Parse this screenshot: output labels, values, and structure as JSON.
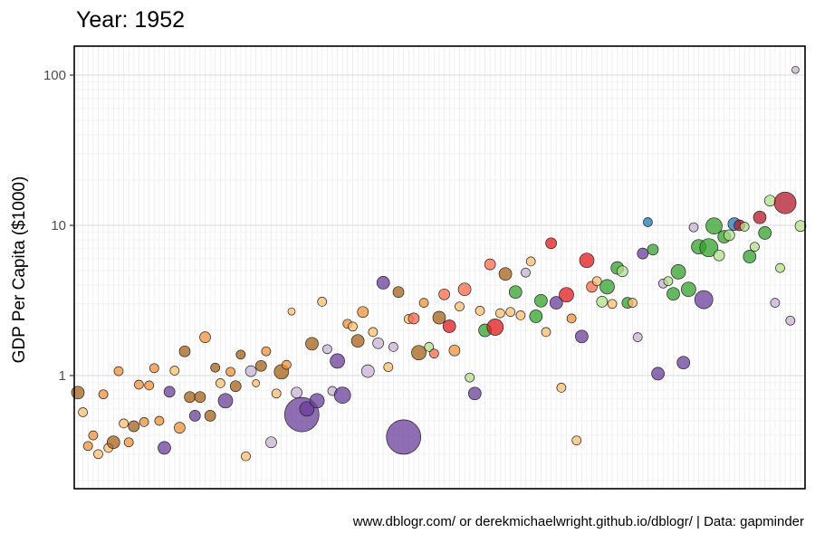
{
  "chart_data": {
    "type": "scatter",
    "title": "Year: 1952",
    "xlabel": "",
    "ylabel": "GDP Per Capita ($1000)",
    "caption": "www.dblogr.com/ or derekmichaelwright.github.io/dblogr/ | Data: gapminder",
    "y_scale": "log10",
    "ylim": [
      0.2,
      135
    ],
    "y_ticks": [
      {
        "value": 1,
        "label": "1"
      },
      {
        "value": 10,
        "label": "10"
      },
      {
        "value": 100,
        "label": "100"
      }
    ],
    "x_axis": "categorical (countries in order), no tick labels",
    "grid": true,
    "legend": "none",
    "colors": {
      "orange_light": "#fdbf6f",
      "orange": "#f0913a",
      "brown": "#a6611a",
      "purple_light": "#cab2d6",
      "purple": "#6a3d9a",
      "green_light": "#b2df8a",
      "green": "#33a02c",
      "red": "#e31a1c",
      "red_dark": "#b2182b",
      "salmon": "#fb6a4a",
      "blue": "#1f78b4"
    },
    "points": [
      {
        "i": 0,
        "y": 0.77,
        "s": 7,
        "c": "brown"
      },
      {
        "i": 1,
        "y": 0.57,
        "s": 5,
        "c": "orange_light"
      },
      {
        "i": 2,
        "y": 0.34,
        "s": 5,
        "c": "orange"
      },
      {
        "i": 3,
        "y": 0.4,
        "s": 5,
        "c": "orange"
      },
      {
        "i": 4,
        "y": 0.3,
        "s": 5,
        "c": "orange_light"
      },
      {
        "i": 5,
        "y": 0.75,
        "s": 5,
        "c": "orange"
      },
      {
        "i": 6,
        "y": 0.33,
        "s": 5,
        "c": "orange_light"
      },
      {
        "i": 7,
        "y": 0.36,
        "s": 7,
        "c": "brown"
      },
      {
        "i": 8,
        "y": 1.07,
        "s": 5,
        "c": "orange"
      },
      {
        "i": 9,
        "y": 0.48,
        "s": 5,
        "c": "orange_light"
      },
      {
        "i": 10,
        "y": 0.36,
        "s": 5,
        "c": "orange"
      },
      {
        "i": 11,
        "y": 0.46,
        "s": 6,
        "c": "brown"
      },
      {
        "i": 12,
        "y": 0.87,
        "s": 5,
        "c": "orange"
      },
      {
        "i": 13,
        "y": 0.49,
        "s": 5,
        "c": "orange"
      },
      {
        "i": 14,
        "y": 0.86,
        "s": 5,
        "c": "orange"
      },
      {
        "i": 15,
        "y": 1.12,
        "s": 5,
        "c": "orange"
      },
      {
        "i": 16,
        "y": 0.5,
        "s": 5,
        "c": "orange"
      },
      {
        "i": 17,
        "y": 0.33,
        "s": 7,
        "c": "purple"
      },
      {
        "i": 18,
        "y": 0.78,
        "s": 6,
        "c": "purple"
      },
      {
        "i": 19,
        "y": 1.08,
        "s": 5,
        "c": "orange_light"
      },
      {
        "i": 20,
        "y": 0.45,
        "s": 6,
        "c": "orange"
      },
      {
        "i": 21,
        "y": 1.45,
        "s": 6,
        "c": "brown"
      },
      {
        "i": 22,
        "y": 0.72,
        "s": 6,
        "c": "brown"
      },
      {
        "i": 23,
        "y": 0.54,
        "s": 6,
        "c": "purple"
      },
      {
        "i": 24,
        "y": 0.72,
        "s": 6,
        "c": "brown"
      },
      {
        "i": 25,
        "y": 1.8,
        "s": 6,
        "c": "orange"
      },
      {
        "i": 26,
        "y": 0.54,
        "s": 6,
        "c": "brown"
      },
      {
        "i": 27,
        "y": 1.13,
        "s": 5,
        "c": "brown"
      },
      {
        "i": 28,
        "y": 0.89,
        "s": 5,
        "c": "orange_light"
      },
      {
        "i": 29,
        "y": 0.68,
        "s": 8,
        "c": "purple"
      },
      {
        "i": 30,
        "y": 1.06,
        "s": 5,
        "c": "orange"
      },
      {
        "i": 31,
        "y": 0.85,
        "s": 6,
        "c": "brown"
      },
      {
        "i": 32,
        "y": 1.38,
        "s": 5,
        "c": "brown"
      },
      {
        "i": 33,
        "y": 0.29,
        "s": 5,
        "c": "orange_light"
      },
      {
        "i": 34,
        "y": 1.07,
        "s": 6,
        "c": "purple_light"
      },
      {
        "i": 35,
        "y": 0.89,
        "s": 4,
        "c": "orange_light"
      },
      {
        "i": 36,
        "y": 1.16,
        "s": 6,
        "c": "brown"
      },
      {
        "i": 37,
        "y": 1.45,
        "s": 5,
        "c": "orange"
      },
      {
        "i": 38,
        "y": 0.36,
        "s": 6,
        "c": "purple_light"
      },
      {
        "i": 39,
        "y": 0.76,
        "s": 5,
        "c": "orange_light"
      },
      {
        "i": 40,
        "y": 1.06,
        "s": 8,
        "c": "brown"
      },
      {
        "i": 41,
        "y": 1.18,
        "s": 5,
        "c": "orange"
      },
      {
        "i": 42,
        "y": 2.67,
        "s": 4,
        "c": "orange_light"
      },
      {
        "i": 43,
        "y": 0.77,
        "s": 6,
        "c": "purple_light"
      },
      {
        "i": 44,
        "y": 0.55,
        "s": 19,
        "c": "purple"
      },
      {
        "i": 45,
        "y": 0.6,
        "s": 8,
        "c": "purple"
      },
      {
        "i": 46,
        "y": 1.63,
        "s": 7,
        "c": "brown"
      },
      {
        "i": 47,
        "y": 0.68,
        "s": 8,
        "c": "purple"
      },
      {
        "i": 48,
        "y": 3.1,
        "s": 5,
        "c": "orange_light"
      },
      {
        "i": 49,
        "y": 1.5,
        "s": 5,
        "c": "purple_light"
      },
      {
        "i": 50,
        "y": 0.79,
        "s": 5,
        "c": "purple_light"
      },
      {
        "i": 51,
        "y": 1.25,
        "s": 8,
        "c": "purple"
      },
      {
        "i": 52,
        "y": 0.74,
        "s": 9,
        "c": "purple"
      },
      {
        "i": 53,
        "y": 2.21,
        "s": 5,
        "c": "orange"
      },
      {
        "i": 54,
        "y": 2.12,
        "s": 5,
        "c": "orange_light"
      },
      {
        "i": 55,
        "y": 1.7,
        "s": 7,
        "c": "brown"
      },
      {
        "i": 56,
        "y": 2.65,
        "s": 6,
        "c": "orange"
      },
      {
        "i": 57,
        "y": 1.07,
        "s": 7,
        "c": "purple_light"
      },
      {
        "i": 58,
        "y": 1.95,
        "s": 5,
        "c": "orange_light"
      },
      {
        "i": 59,
        "y": 1.64,
        "s": 6,
        "c": "purple_light"
      },
      {
        "i": 60,
        "y": 4.15,
        "s": 7,
        "c": "purple"
      },
      {
        "i": 61,
        "y": 1.14,
        "s": 5,
        "c": "orange_light"
      },
      {
        "i": 62,
        "y": 1.55,
        "s": 5,
        "c": "purple_light"
      },
      {
        "i": 63,
        "y": 3.6,
        "s": 6,
        "c": "brown"
      },
      {
        "i": 64,
        "y": 0.39,
        "s": 19,
        "c": "purple"
      },
      {
        "i": 65,
        "y": 2.38,
        "s": 5,
        "c": "orange_light"
      },
      {
        "i": 66,
        "y": 2.4,
        "s": 6,
        "c": "salmon"
      },
      {
        "i": 67,
        "y": 1.42,
        "s": 8,
        "c": "brown"
      },
      {
        "i": 68,
        "y": 3.05,
        "s": 5,
        "c": "orange"
      },
      {
        "i": 69,
        "y": 1.55,
        "s": 5,
        "c": "green_light"
      },
      {
        "i": 70,
        "y": 1.4,
        "s": 5,
        "c": "salmon"
      },
      {
        "i": 71,
        "y": 2.43,
        "s": 7,
        "c": "brown"
      },
      {
        "i": 72,
        "y": 3.47,
        "s": 6,
        "c": "salmon"
      },
      {
        "i": 73,
        "y": 2.13,
        "s": 7,
        "c": "red"
      },
      {
        "i": 74,
        "y": 1.47,
        "s": 6,
        "c": "orange"
      },
      {
        "i": 75,
        "y": 2.88,
        "s": 5,
        "c": "orange_light"
      },
      {
        "i": 76,
        "y": 3.75,
        "s": 7,
        "c": "salmon"
      },
      {
        "i": 77,
        "y": 0.97,
        "s": 5,
        "c": "green_light"
      },
      {
        "i": 78,
        "y": 0.76,
        "s": 7,
        "c": "purple"
      },
      {
        "i": 79,
        "y": 2.7,
        "s": 5,
        "c": "orange_light"
      },
      {
        "i": 80,
        "y": 2.0,
        "s": 7,
        "c": "green"
      },
      {
        "i": 81,
        "y": 5.5,
        "s": 6,
        "c": "salmon"
      },
      {
        "i": 82,
        "y": 2.1,
        "s": 9,
        "c": "red"
      },
      {
        "i": 83,
        "y": 2.6,
        "s": 5,
        "c": "orange_light"
      },
      {
        "i": 84,
        "y": 4.75,
        "s": 7,
        "c": "brown"
      },
      {
        "i": 85,
        "y": 2.65,
        "s": 5,
        "c": "orange_light"
      },
      {
        "i": 86,
        "y": 3.6,
        "s": 7,
        "c": "green"
      },
      {
        "i": 87,
        "y": 2.52,
        "s": 5,
        "c": "orange_light"
      },
      {
        "i": 88,
        "y": 4.85,
        "s": 5,
        "c": "purple_light"
      },
      {
        "i": 89,
        "y": 5.75,
        "s": 5,
        "c": "orange_light"
      },
      {
        "i": 90,
        "y": 2.48,
        "s": 7,
        "c": "green"
      },
      {
        "i": 91,
        "y": 3.15,
        "s": 7,
        "c": "green"
      },
      {
        "i": 92,
        "y": 1.95,
        "s": 5,
        "c": "orange_light"
      },
      {
        "i": 93,
        "y": 7.6,
        "s": 6,
        "c": "red"
      },
      {
        "i": 94,
        "y": 3.05,
        "s": 7,
        "c": "purple"
      },
      {
        "i": 95,
        "y": 0.83,
        "s": 5,
        "c": "orange_light"
      },
      {
        "i": 96,
        "y": 3.45,
        "s": 8,
        "c": "red"
      },
      {
        "i": 97,
        "y": 2.4,
        "s": 5,
        "c": "orange"
      },
      {
        "i": 98,
        "y": 0.37,
        "s": 5,
        "c": "orange_light"
      },
      {
        "i": 99,
        "y": 1.82,
        "s": 7,
        "c": "purple"
      },
      {
        "i": 100,
        "y": 5.85,
        "s": 8,
        "c": "red"
      },
      {
        "i": 101,
        "y": 3.9,
        "s": 6,
        "c": "salmon"
      },
      {
        "i": 102,
        "y": 4.25,
        "s": 5,
        "c": "orange_light"
      },
      {
        "i": 103,
        "y": 3.1,
        "s": 6,
        "c": "green_light"
      },
      {
        "i": 104,
        "y": 3.9,
        "s": 8,
        "c": "green"
      },
      {
        "i": 105,
        "y": 3.0,
        "s": 5,
        "c": "orange_light"
      },
      {
        "i": 106,
        "y": 5.2,
        "s": 7,
        "c": "green"
      },
      {
        "i": 107,
        "y": 4.95,
        "s": 6,
        "c": "green_light"
      },
      {
        "i": 108,
        "y": 3.05,
        "s": 6,
        "c": "green"
      },
      {
        "i": 109,
        "y": 3.05,
        "s": 5,
        "c": "orange_light"
      },
      {
        "i": 110,
        "y": 1.8,
        "s": 5,
        "c": "purple_light"
      },
      {
        "i": 111,
        "y": 6.5,
        "s": 6,
        "c": "purple"
      },
      {
        "i": 112,
        "y": 10.5,
        "s": 5,
        "c": "blue"
      },
      {
        "i": 113,
        "y": 6.9,
        "s": 6,
        "c": "green"
      },
      {
        "i": 114,
        "y": 1.03,
        "s": 7,
        "c": "purple"
      },
      {
        "i": 115,
        "y": 4.1,
        "s": 5,
        "c": "purple_light"
      },
      {
        "i": 116,
        "y": 4.25,
        "s": 5,
        "c": "green_light"
      },
      {
        "i": 117,
        "y": 3.5,
        "s": 7,
        "c": "green"
      },
      {
        "i": 118,
        "y": 4.9,
        "s": 8,
        "c": "green"
      },
      {
        "i": 119,
        "y": 1.22,
        "s": 7,
        "c": "purple"
      },
      {
        "i": 120,
        "y": 3.75,
        "s": 8,
        "c": "green"
      },
      {
        "i": 121,
        "y": 9.7,
        "s": 5,
        "c": "purple_light"
      },
      {
        "i": 122,
        "y": 7.2,
        "s": 8,
        "c": "green"
      },
      {
        "i": 123,
        "y": 3.2,
        "s": 10,
        "c": "purple"
      },
      {
        "i": 124,
        "y": 7.1,
        "s": 10,
        "c": "green"
      },
      {
        "i": 125,
        "y": 9.9,
        "s": 9,
        "c": "green"
      },
      {
        "i": 126,
        "y": 6.3,
        "s": 6,
        "c": "green_light"
      },
      {
        "i": 127,
        "y": 8.4,
        "s": 7,
        "c": "green"
      },
      {
        "i": 128,
        "y": 8.6,
        "s": 6,
        "c": "green_light"
      },
      {
        "i": 129,
        "y": 10.2,
        "s": 7,
        "c": "blue"
      },
      {
        "i": 130,
        "y": 10.0,
        "s": 6,
        "c": "red_dark"
      },
      {
        "i": 131,
        "y": 9.8,
        "s": 5,
        "c": "green_light"
      },
      {
        "i": 132,
        "y": 6.2,
        "s": 7,
        "c": "green"
      },
      {
        "i": 133,
        "y": 7.2,
        "s": 5,
        "c": "green_light"
      },
      {
        "i": 134,
        "y": 11.3,
        "s": 7,
        "c": "red_dark"
      },
      {
        "i": 135,
        "y": 8.9,
        "s": 7,
        "c": "green"
      },
      {
        "i": 136,
        "y": 14.6,
        "s": 6,
        "c": "green_light"
      },
      {
        "i": 137,
        "y": 3.05,
        "s": 5,
        "c": "purple_light"
      },
      {
        "i": 138,
        "y": 5.2,
        "s": 5,
        "c": "green_light"
      },
      {
        "i": 139,
        "y": 14.1,
        "s": 12,
        "c": "red_dark"
      },
      {
        "i": 140,
        "y": 2.32,
        "s": 5,
        "c": "purple_light"
      },
      {
        "i": 141,
        "y": 108.4,
        "s": 4,
        "c": "purple_light"
      },
      {
        "i": 142,
        "y": 9.9,
        "s": 6,
        "c": "green_light"
      }
    ]
  }
}
